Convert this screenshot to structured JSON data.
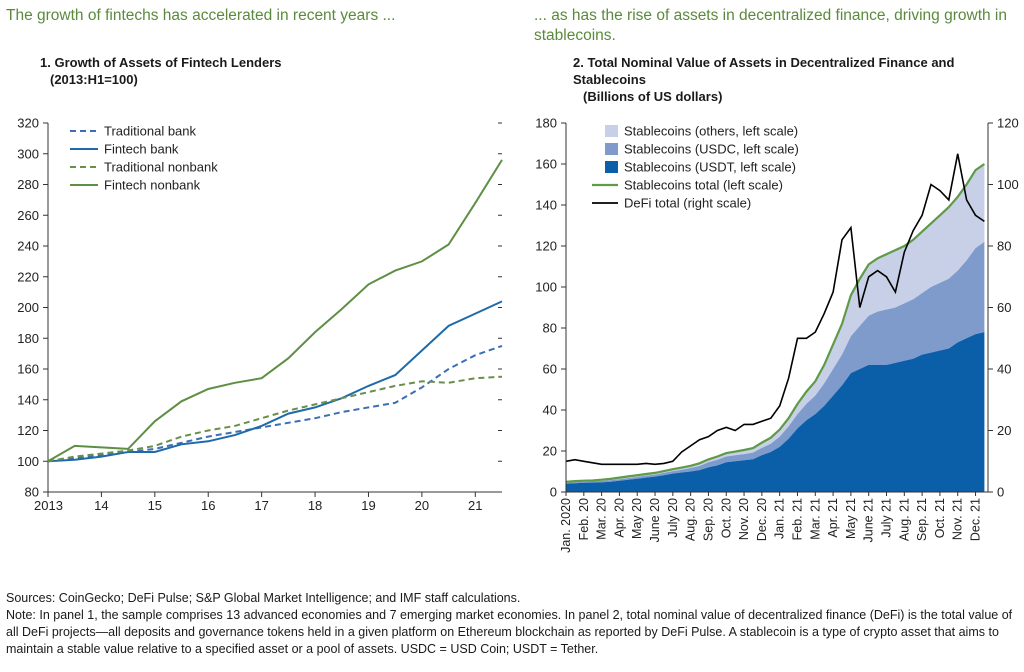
{
  "headline_left": "The growth of fintechs has accelerated in recent years ...",
  "headline_right": "... as has the rise of assets in decentralized finance, driving growth in stablecoins.",
  "notes": {
    "sources": "Sources: CoinGecko; DeFi Pulse; S&P Global Market Intelligence; and IMF staff calculations.",
    "note": "Note: In panel 1, the sample comprises 13 advanced economies and 7 emerging market economies. In panel 2, total nominal value of decentralized finance (DeFi) is the total value of all DeFi projects—all deposits and governance tokens held in a given platform on Ethereum blockchain as reported by DeFi Pulse. A stablecoin is a type of crypto asset that aims to maintain a stable value relative to a specified asset or a pool of assets. USDC = USD Coin; USDT = Tether."
  },
  "colors": {
    "traditional_bank": "#3a6fb5",
    "fintech_bank": "#1f6aa8",
    "traditional_nonbank": "#6a8f4a",
    "fintech_nonbank": "#5e8f44",
    "usdt": "#0b5ea8",
    "usdc": "#7f9bcc",
    "others": "#c7d0e6",
    "stablecoin_total": "#5e9a48",
    "defi_total": "#000000"
  },
  "chart_data": [
    {
      "type": "line",
      "title": "1. Growth of Assets of Fintech Lenders",
      "subtitle": "(2013:H1=100)",
      "ylim": [
        80,
        320
      ],
      "yticks": [
        80,
        100,
        120,
        140,
        160,
        180,
        200,
        220,
        240,
        260,
        280,
        300,
        320
      ],
      "xticks": [
        "2013",
        "14",
        "15",
        "16",
        "17",
        "18",
        "19",
        "20",
        "21"
      ],
      "x": [
        2013.0,
        2013.5,
        2014.0,
        2014.5,
        2015.0,
        2015.5,
        2016.0,
        2016.5,
        2017.0,
        2017.5,
        2018.0,
        2018.5,
        2019.0,
        2019.5,
        2020.0,
        2020.5,
        2021.0,
        2021.5
      ],
      "legend": "top-left",
      "series": [
        {
          "name": "Traditional bank",
          "style": "dashed",
          "values": [
            100,
            102,
            104,
            106,
            108,
            112,
            116,
            119,
            122,
            125,
            128,
            132,
            135,
            138,
            148,
            160,
            169,
            175
          ]
        },
        {
          "name": "Fintech bank",
          "style": "solid",
          "values": [
            100,
            101,
            103,
            106,
            106,
            111,
            113,
            117,
            123,
            131,
            135,
            141,
            149,
            156,
            172,
            188,
            196,
            204
          ]
        },
        {
          "name": "Traditional nonbank",
          "style": "dashed",
          "values": [
            100,
            103,
            105,
            107,
            110,
            116,
            120,
            123,
            128,
            133,
            137,
            141,
            145,
            149,
            152,
            151,
            154,
            155
          ]
        },
        {
          "name": "Fintech nonbank",
          "style": "solid",
          "values": [
            100,
            110,
            109,
            108,
            126,
            139,
            147,
            151,
            154,
            167,
            184,
            199,
            215,
            224,
            230,
            241,
            268,
            296
          ]
        }
      ]
    },
    {
      "type": "area",
      "title": "2. Total Nominal Value of Assets in Decentralized Finance and Stablecoins",
      "subtitle": "(Billions of US dollars)",
      "ylim_left": [
        0,
        180
      ],
      "yticks_left": [
        0,
        20,
        40,
        60,
        80,
        100,
        120,
        140,
        160,
        180
      ],
      "ylim_right": [
        0,
        120
      ],
      "yticks_right": [
        0,
        20,
        40,
        60,
        80,
        100,
        120
      ],
      "xticks": [
        "Jan. 2020",
        "Feb. 20",
        "Mar. 20",
        "Apr. 20",
        "May 20",
        "June 20",
        "July 20",
        "Aug. 20",
        "Sep. 20",
        "Oct. 20",
        "Nov. 20",
        "Dec. 20",
        "Jan. 21",
        "Feb. 21",
        "Mar. 21",
        "Apr. 21",
        "May 21",
        "June 21",
        "July 21",
        "Aug. 21",
        "Sep. 21",
        "Oct. 21",
        "Nov. 21",
        "Dec. 21"
      ],
      "x_months": [
        0,
        0.5,
        1,
        1.5,
        2,
        2.5,
        3,
        3.5,
        4,
        4.5,
        5,
        5.5,
        6,
        6.5,
        7,
        7.5,
        8,
        8.5,
        9,
        9.5,
        10,
        10.5,
        11,
        11.5,
        12,
        12.5,
        13,
        13.5,
        14,
        14.5,
        15,
        15.5,
        16,
        16.5,
        17,
        17.5,
        18,
        18.5,
        19,
        19.5,
        20,
        20.5,
        21,
        21.5,
        22,
        22.5,
        23,
        23.5
      ],
      "legend": "top-left",
      "series": [
        {
          "name": "Stablecoins (others, left scale)",
          "axis": "left",
          "kind": "stack",
          "values": [
            0.5,
            0.5,
            0.5,
            0.5,
            0.6,
            0.7,
            0.8,
            0.8,
            0.8,
            0.8,
            0.8,
            0.9,
            0.9,
            1.0,
            1.1,
            1.3,
            1.4,
            1.6,
            1.7,
            1.8,
            2.0,
            2.2,
            2.6,
            3.0,
            3.5,
            4.0,
            5.0,
            6.0,
            7.0,
            9.0,
            12.0,
            15.0,
            20.0,
            23.0,
            25.0,
            26.0,
            27.0,
            28.0,
            28.0,
            29.0,
            30.0,
            31.0,
            33.0,
            35.0,
            36.0,
            37.0,
            38.0,
            38.0
          ]
        },
        {
          "name": "Stablecoins (USDC, left scale)",
          "axis": "left",
          "kind": "stack",
          "values": [
            0.5,
            0.5,
            0.5,
            0.5,
            0.7,
            0.7,
            0.7,
            0.8,
            0.9,
            1.0,
            1.0,
            1.1,
            1.2,
            1.4,
            1.7,
            2.0,
            2.5,
            2.7,
            2.8,
            2.9,
            3.0,
            3.2,
            3.5,
            4.0,
            5.0,
            6.0,
            7.0,
            8.0,
            9.0,
            11.0,
            13.0,
            15.0,
            18.0,
            21.0,
            24.0,
            26.0,
            27.0,
            27.0,
            28.0,
            29.0,
            30.0,
            32.0,
            33.0,
            34.0,
            35.0,
            38.0,
            42.0,
            44.0
          ]
        },
        {
          "name": "Stablecoins (USDT, left scale)",
          "axis": "left",
          "kind": "stack",
          "values": [
            4.0,
            4.3,
            4.5,
            4.6,
            4.7,
            5.0,
            5.5,
            6.0,
            6.5,
            7.0,
            7.5,
            8.2,
            9.0,
            9.5,
            10.0,
            10.7,
            12.0,
            13.0,
            14.5,
            15.0,
            15.5,
            16.0,
            18.0,
            19.5,
            22.0,
            26.0,
            31.0,
            35.0,
            38.0,
            42.0,
            47.0,
            52.0,
            58.0,
            60.0,
            62.0,
            62.0,
            62.0,
            63.0,
            64.0,
            65.0,
            67.0,
            68.0,
            69.0,
            70.0,
            73.0,
            75.0,
            77.0,
            78.0
          ]
        },
        {
          "name": "Stablecoins total (left scale)",
          "axis": "left",
          "kind": "line",
          "values": [
            5.0,
            5.3,
            5.5,
            5.6,
            6.0,
            6.4,
            7.0,
            7.6,
            8.2,
            8.8,
            9.3,
            10.2,
            11.1,
            11.9,
            12.8,
            14.0,
            15.9,
            17.3,
            19.0,
            19.7,
            20.5,
            21.4,
            24.1,
            26.5,
            30.5,
            36.0,
            43.0,
            49.0,
            54.0,
            62.0,
            72.0,
            82.0,
            96.0,
            104.0,
            111.0,
            114.0,
            116.0,
            118.0,
            120.0,
            123.0,
            127.0,
            131.0,
            135.0,
            139.0,
            144.0,
            150.0,
            157.0,
            160.0
          ]
        },
        {
          "name": "DeFi total (right scale)",
          "axis": "right",
          "kind": "line",
          "values": [
            10.0,
            10.5,
            10.0,
            9.5,
            9.0,
            9.0,
            9.0,
            9.0,
            9.0,
            9.3,
            9.0,
            9.3,
            10.0,
            13.0,
            15.0,
            17.0,
            18.0,
            20.0,
            21.0,
            20.0,
            22.0,
            22.0,
            23.0,
            24.0,
            28.0,
            37.0,
            50.0,
            50.0,
            52.0,
            58.0,
            65.0,
            82.0,
            86.0,
            60.0,
            70.0,
            72.0,
            70.0,
            65.0,
            78.0,
            85.0,
            90.0,
            100.0,
            98.0,
            95.0,
            110.0,
            95.0,
            90.0,
            88.0
          ]
        }
      ]
    }
  ]
}
